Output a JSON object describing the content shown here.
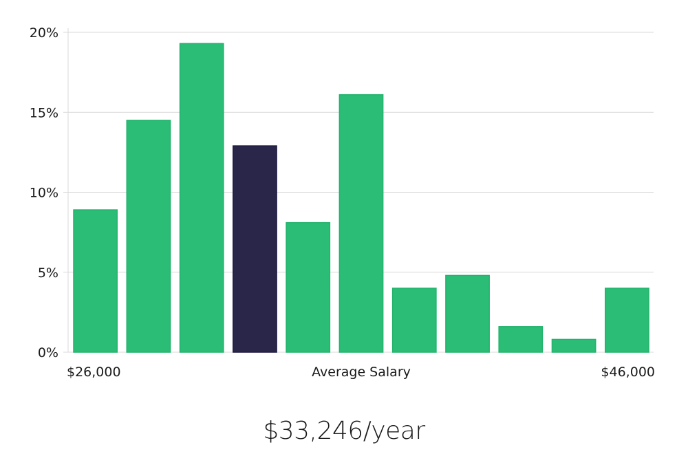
{
  "chart_data": {
    "type": "bar",
    "title": "",
    "xlabel": "Average Salary",
    "ylabel": "",
    "x_range_labels": {
      "min": "$26,000",
      "max": "$46,000"
    },
    "x_range": [
      26000,
      46000
    ],
    "values": [
      8.9,
      14.5,
      19.3,
      12.9,
      8.1,
      16.1,
      4.0,
      4.8,
      1.6,
      0.8,
      4.0
    ],
    "highlight_index": 3,
    "ylim": [
      0,
      20
    ],
    "yticks": [
      0,
      5,
      10,
      15,
      20
    ],
    "ytick_labels": [
      "0%",
      "5%",
      "10%",
      "15%",
      "20%"
    ],
    "grid": true,
    "colors": {
      "bar": "#2bbd76",
      "bar_stroke": "#22b36c",
      "highlight": "#29264a",
      "highlight_stroke": "#1e1b40"
    }
  },
  "summary": {
    "salary_text": "$33,246/year"
  }
}
